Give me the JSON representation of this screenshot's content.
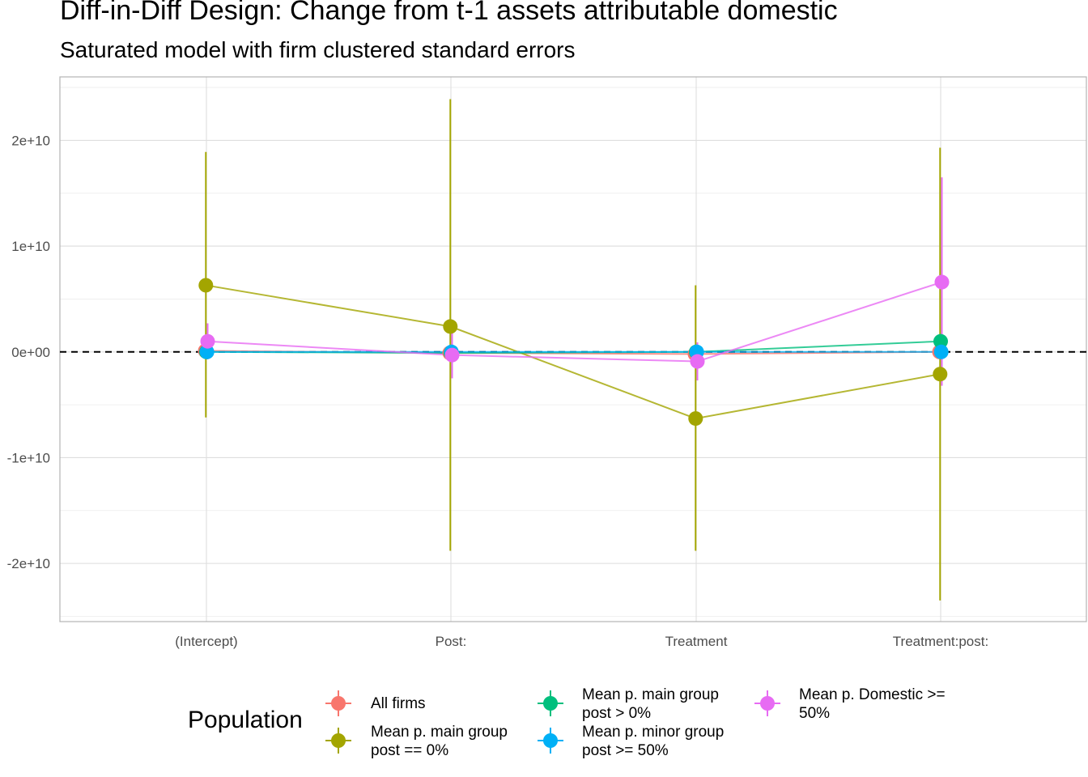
{
  "title": "Diff-in-Diff Design: Change from t-1 assets attributable domestic",
  "subtitle": "Saturated model with firm clustered standard errors",
  "chart_data": {
    "type": "scatter",
    "categories": [
      "(Intercept)",
      "Post:",
      "Treatment",
      "Treatment:post:"
    ],
    "y_ticks": [
      -20000000000,
      -10000000000,
      0,
      10000000000,
      20000000000
    ],
    "y_tick_labels": [
      "-2e+10",
      "-1e+10",
      "0e+00",
      "1e+10",
      "2e+10"
    ],
    "ylim": [
      -25500000000,
      26000000000
    ],
    "xlabel": "",
    "ylabel": "",
    "grid": true,
    "reference_line": 0,
    "legend_title": "Population",
    "legend_position": "bottom",
    "series": [
      {
        "name": "All firms",
        "color": "#F8766D",
        "values": [
          100000000,
          -100000000,
          -200000000,
          0
        ],
        "lower": [
          -300000000,
          -500000000,
          -600000000,
          -400000000
        ],
        "upper": [
          500000000,
          300000000,
          200000000,
          400000000
        ]
      },
      {
        "name": "Mean p. main group post == 0%",
        "color": "#A3A500",
        "values": [
          6300000000,
          2400000000,
          -6300000000,
          -2100000000
        ],
        "lower": [
          -6200000000,
          -18800000000,
          -18800000000,
          -23500000000
        ],
        "upper": [
          18900000000,
          23900000000,
          6300000000,
          19300000000
        ]
      },
      {
        "name": "Mean p. main group post > 0%",
        "color": "#00BF7D",
        "values": [
          0,
          -100000000,
          0,
          1000000000
        ],
        "lower": [
          -300000000,
          -400000000,
          -300000000,
          300000000
        ],
        "upper": [
          300000000,
          200000000,
          300000000,
          1700000000
        ]
      },
      {
        "name": "Mean p. minor group post >= 50%",
        "color": "#00B0F6",
        "values": [
          0,
          0,
          0,
          0
        ],
        "lower": [
          -200000000,
          -200000000,
          -200000000,
          -200000000
        ],
        "upper": [
          200000000,
          200000000,
          200000000,
          200000000
        ]
      },
      {
        "name": "Mean p. Domestic >= 50%",
        "color": "#E76BF3",
        "values": [
          1000000000,
          -300000000,
          -900000000,
          6600000000
        ],
        "lower": [
          -700000000,
          -2500000000,
          -2700000000,
          -3200000000
        ],
        "upper": [
          2700000000,
          1900000000,
          900000000,
          16500000000
        ]
      }
    ]
  },
  "legend": {
    "title": "Population",
    "items": [
      {
        "line1": "All firms",
        "line2": "",
        "color": "#F8766D"
      },
      {
        "line1": "Mean p. main group",
        "line2": "post == 0%",
        "color": "#A3A500"
      },
      {
        "line1": "Mean p. main group",
        "line2": "post > 0%",
        "color": "#00BF7D"
      },
      {
        "line1": "Mean p. minor group",
        "line2": "post >= 50%",
        "color": "#00B0F6"
      },
      {
        "line1": "Mean p. Domestic >=",
        "line2": "50%",
        "color": "#E76BF3"
      }
    ]
  }
}
